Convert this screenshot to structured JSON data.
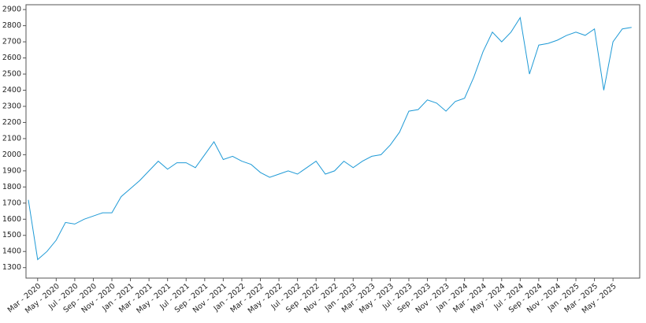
{
  "chart_data": {
    "type": "line",
    "x": [
      "2020-02",
      "2020-03",
      "2020-04",
      "2020-05",
      "2020-06",
      "2020-07",
      "2020-08",
      "2020-09",
      "2020-10",
      "2020-11",
      "2020-12",
      "2021-01",
      "2021-02",
      "2021-03",
      "2021-04",
      "2021-05",
      "2021-06",
      "2021-07",
      "2021-08",
      "2021-09",
      "2021-10",
      "2021-11",
      "2021-12",
      "2022-01",
      "2022-02",
      "2022-03",
      "2022-04",
      "2022-05",
      "2022-06",
      "2022-07",
      "2022-08",
      "2022-09",
      "2022-10",
      "2022-11",
      "2022-12",
      "2023-01",
      "2023-02",
      "2023-03",
      "2023-04",
      "2023-05",
      "2023-06",
      "2023-07",
      "2023-08",
      "2023-09",
      "2023-10",
      "2023-11",
      "2023-12",
      "2024-01",
      "2024-02",
      "2024-03",
      "2024-04",
      "2024-05",
      "2024-06",
      "2024-07",
      "2024-08",
      "2024-09",
      "2024-10",
      "2024-11",
      "2024-12",
      "2025-01",
      "2025-02",
      "2025-03",
      "2025-04",
      "2025-05",
      "2025-06",
      "2025-07"
    ],
    "series": [
      {
        "color": "#1f9ad6",
        "values": [
          1720,
          1350,
          1400,
          1470,
          1580,
          1570,
          1600,
          1620,
          1640,
          1640,
          1740,
          1790,
          1840,
          1900,
          1960,
          1910,
          1950,
          1950,
          1920,
          2000,
          2080,
          1970,
          1990,
          1960,
          1940,
          1890,
          1860,
          1880,
          1900,
          1880,
          1920,
          1960,
          1880,
          1900,
          1960,
          1920,
          1960,
          1990,
          2000,
          2060,
          2140,
          2270,
          2280,
          2340,
          2320,
          2270,
          2330,
          2350,
          2480,
          2640,
          2760,
          2700,
          2760,
          2850,
          2500,
          2680,
          2690,
          2710,
          2740,
          2760,
          2740,
          2780,
          2400,
          2700,
          2780,
          2790
        ]
      }
    ],
    "ylim": [
      1235,
      2930
    ],
    "yticks": [
      1300,
      1400,
      1500,
      1600,
      1700,
      1800,
      1900,
      2000,
      2100,
      2200,
      2300,
      2400,
      2500,
      2600,
      2700,
      2800,
      2900
    ],
    "xticks": [
      {
        "value": "2020-03",
        "label": "Mar - 2020"
      },
      {
        "value": "2020-05",
        "label": "May - 2020"
      },
      {
        "value": "2020-07",
        "label": "Jul - 2020"
      },
      {
        "value": "2020-09",
        "label": "Sep - 2020"
      },
      {
        "value": "2020-11",
        "label": "Nov - 2020"
      },
      {
        "value": "2021-01",
        "label": "Jan - 2021"
      },
      {
        "value": "2021-03",
        "label": "Mar - 2021"
      },
      {
        "value": "2021-05",
        "label": "May - 2021"
      },
      {
        "value": "2021-07",
        "label": "Jul - 2021"
      },
      {
        "value": "2021-09",
        "label": "Sep - 2021"
      },
      {
        "value": "2021-11",
        "label": "Nov - 2021"
      },
      {
        "value": "2022-01",
        "label": "Jan - 2022"
      },
      {
        "value": "2022-03",
        "label": "Mar - 2022"
      },
      {
        "value": "2022-05",
        "label": "May - 2022"
      },
      {
        "value": "2022-07",
        "label": "Jul - 2022"
      },
      {
        "value": "2022-09",
        "label": "Sep - 2022"
      },
      {
        "value": "2022-11",
        "label": "Nov - 2022"
      },
      {
        "value": "2023-01",
        "label": "Jan - 2023"
      },
      {
        "value": "2023-03",
        "label": "Mar - 2023"
      },
      {
        "value": "2023-05",
        "label": "May - 2023"
      },
      {
        "value": "2023-07",
        "label": "Jul - 2023"
      },
      {
        "value": "2023-09",
        "label": "Sep - 2023"
      },
      {
        "value": "2023-11",
        "label": "Nov - 2023"
      },
      {
        "value": "2024-01",
        "label": "Jan - 2024"
      },
      {
        "value": "2024-03",
        "label": "Mar - 2024"
      },
      {
        "value": "2024-05",
        "label": "May - 2024"
      },
      {
        "value": "2024-07",
        "label": "Jul - 2024"
      },
      {
        "value": "2024-09",
        "label": "Sep - 2024"
      },
      {
        "value": "2024-11",
        "label": "Nov - 2024"
      },
      {
        "value": "2025-01",
        "label": "Jan - 2025"
      },
      {
        "value": "2025-03",
        "label": "Mar - 2025"
      },
      {
        "value": "2025-05",
        "label": "May - 2025"
      }
    ],
    "grid": false
  }
}
